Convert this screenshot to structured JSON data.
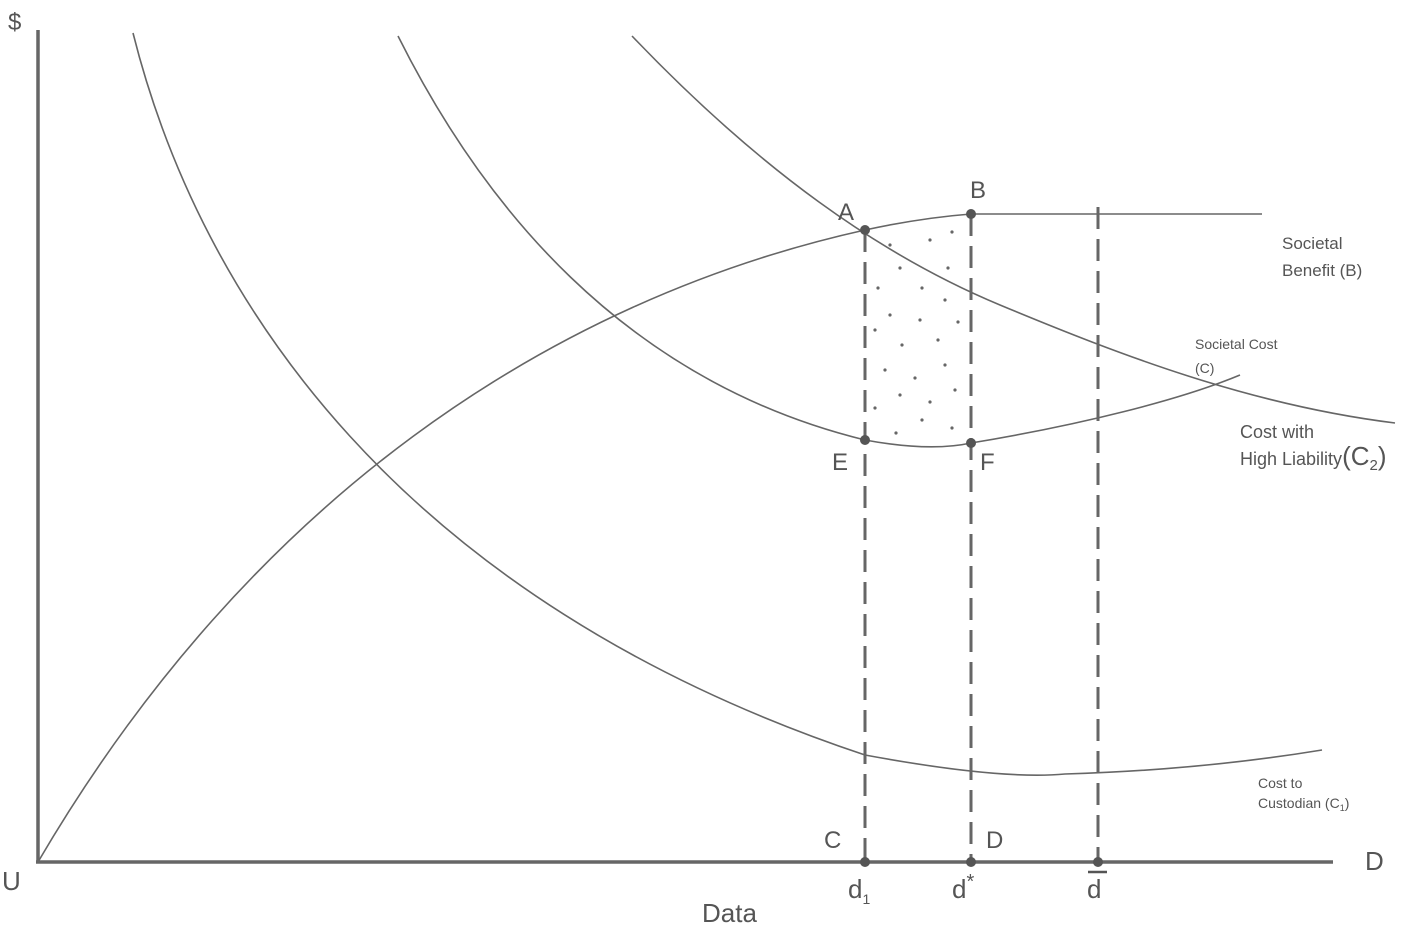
{
  "axes": {
    "y_label": "$",
    "origin": "U",
    "x_end": "D",
    "x_title": "Data"
  },
  "points": {
    "A": "A",
    "B": "B",
    "C": "C",
    "D": "D",
    "E": "E",
    "F": "F"
  },
  "ticks": [
    {
      "base": "d",
      "sub": "1"
    },
    {
      "base": "d",
      "sup": "*"
    },
    {
      "base": "d"
    }
  ],
  "curves": {
    "benefit": {
      "lines": [
        "Societal",
        "Benefit (B)"
      ]
    },
    "cost": {
      "lines": [
        "Societal Cost",
        "(C)"
      ]
    },
    "high_liability": {
      "lines": [
        "Cost with",
        "High Liability"
      ],
      "symbol": [
        "(C",
        "2",
        ")"
      ]
    },
    "custodian": {
      "lines": [
        "Cost to",
        "Custodian (C"
      ],
      "sub": "1",
      "close": ")"
    }
  }
}
